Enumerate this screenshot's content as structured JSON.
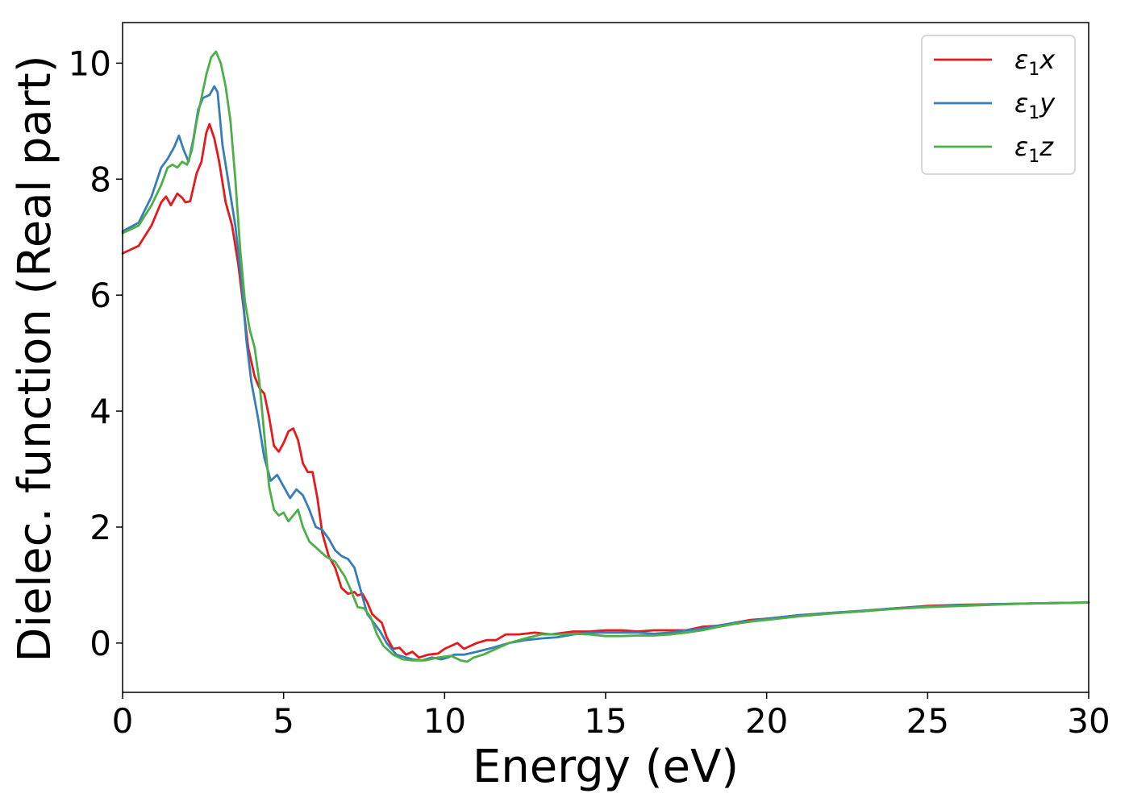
{
  "chart_data": {
    "type": "line",
    "title": "",
    "xlabel": "Energy (eV)",
    "ylabel": "Dielec. function (Real part)",
    "xlim": [
      0,
      30
    ],
    "ylim": [
      -0.85,
      10.7
    ],
    "xticks": [
      0,
      5,
      10,
      15,
      20,
      25,
      30
    ],
    "yticks": [
      0,
      2,
      4,
      6,
      8,
      10
    ],
    "grid": false,
    "legend": "top-right",
    "series": [
      {
        "name": "ε1x",
        "legend_main": "ε",
        "legend_sub": "1",
        "legend_var": "x",
        "color": "#e41a1c",
        "points": [
          [
            0,
            6.72
          ],
          [
            0.5,
            6.85
          ],
          [
            0.9,
            7.2
          ],
          [
            1.2,
            7.6
          ],
          [
            1.35,
            7.7
          ],
          [
            1.5,
            7.55
          ],
          [
            1.7,
            7.75
          ],
          [
            1.85,
            7.68
          ],
          [
            1.95,
            7.6
          ],
          [
            2.1,
            7.62
          ],
          [
            2.3,
            8.1
          ],
          [
            2.45,
            8.3
          ],
          [
            2.6,
            8.8
          ],
          [
            2.7,
            8.95
          ],
          [
            2.85,
            8.7
          ],
          [
            3.0,
            8.3
          ],
          [
            3.2,
            7.6
          ],
          [
            3.4,
            7.2
          ],
          [
            3.6,
            6.5
          ],
          [
            3.75,
            5.8
          ],
          [
            3.9,
            5.1
          ],
          [
            4.1,
            4.6
          ],
          [
            4.25,
            4.4
          ],
          [
            4.4,
            4.3
          ],
          [
            4.55,
            3.9
          ],
          [
            4.7,
            3.4
          ],
          [
            4.85,
            3.3
          ],
          [
            5.0,
            3.45
          ],
          [
            5.15,
            3.65
          ],
          [
            5.3,
            3.7
          ],
          [
            5.45,
            3.5
          ],
          [
            5.6,
            3.1
          ],
          [
            5.75,
            2.95
          ],
          [
            5.9,
            2.95
          ],
          [
            6.05,
            2.5
          ],
          [
            6.2,
            1.9
          ],
          [
            6.4,
            1.5
          ],
          [
            6.6,
            1.3
          ],
          [
            6.8,
            0.95
          ],
          [
            7.0,
            0.85
          ],
          [
            7.2,
            0.88
          ],
          [
            7.3,
            0.82
          ],
          [
            7.45,
            0.85
          ],
          [
            7.6,
            0.7
          ],
          [
            7.75,
            0.5
          ],
          [
            7.9,
            0.42
          ],
          [
            8.05,
            0.35
          ],
          [
            8.2,
            0.1
          ],
          [
            8.4,
            -0.1
          ],
          [
            8.6,
            -0.08
          ],
          [
            8.8,
            -0.2
          ],
          [
            9.0,
            -0.15
          ],
          [
            9.2,
            -0.25
          ],
          [
            9.5,
            -0.2
          ],
          [
            9.8,
            -0.18
          ],
          [
            10.0,
            -0.1
          ],
          [
            10.2,
            -0.05
          ],
          [
            10.4,
            0.0
          ],
          [
            10.6,
            -0.1
          ],
          [
            10.8,
            -0.05
          ],
          [
            11.0,
            0.0
          ],
          [
            11.3,
            0.05
          ],
          [
            11.6,
            0.05
          ],
          [
            11.9,
            0.15
          ],
          [
            12.3,
            0.15
          ],
          [
            12.8,
            0.18
          ],
          [
            13.3,
            0.15
          ],
          [
            14.0,
            0.2
          ],
          [
            14.5,
            0.2
          ],
          [
            15.0,
            0.22
          ],
          [
            15.5,
            0.22
          ],
          [
            16.0,
            0.2
          ],
          [
            16.5,
            0.22
          ],
          [
            17.0,
            0.22
          ],
          [
            17.5,
            0.22
          ],
          [
            18.0,
            0.28
          ],
          [
            18.5,
            0.3
          ],
          [
            19.0,
            0.35
          ],
          [
            19.5,
            0.4
          ],
          [
            20.0,
            0.42
          ],
          [
            21.0,
            0.48
          ],
          [
            22.0,
            0.52
          ],
          [
            23.0,
            0.55
          ],
          [
            24.0,
            0.6
          ],
          [
            25.0,
            0.64
          ],
          [
            26.0,
            0.66
          ],
          [
            27.0,
            0.67
          ],
          [
            28.0,
            0.68
          ],
          [
            29.0,
            0.69
          ],
          [
            30.0,
            0.7
          ]
        ]
      },
      {
        "name": "ε1y",
        "legend_main": "ε",
        "legend_sub": "1",
        "legend_var": "y",
        "color": "#377eb8",
        "points": [
          [
            0,
            7.1
          ],
          [
            0.5,
            7.25
          ],
          [
            0.9,
            7.7
          ],
          [
            1.2,
            8.2
          ],
          [
            1.4,
            8.35
          ],
          [
            1.6,
            8.55
          ],
          [
            1.75,
            8.75
          ],
          [
            1.9,
            8.5
          ],
          [
            2.05,
            8.3
          ],
          [
            2.2,
            8.7
          ],
          [
            2.35,
            9.2
          ],
          [
            2.5,
            9.4
          ],
          [
            2.7,
            9.45
          ],
          [
            2.85,
            9.6
          ],
          [
            2.95,
            9.5
          ],
          [
            3.1,
            8.6
          ],
          [
            3.3,
            7.9
          ],
          [
            3.5,
            7.2
          ],
          [
            3.7,
            6.2
          ],
          [
            3.85,
            5.2
          ],
          [
            4.0,
            4.5
          ],
          [
            4.2,
            3.9
          ],
          [
            4.4,
            3.2
          ],
          [
            4.6,
            2.8
          ],
          [
            4.8,
            2.9
          ],
          [
            5.0,
            2.7
          ],
          [
            5.2,
            2.5
          ],
          [
            5.4,
            2.65
          ],
          [
            5.6,
            2.55
          ],
          [
            5.8,
            2.3
          ],
          [
            6.0,
            2.0
          ],
          [
            6.2,
            1.95
          ],
          [
            6.4,
            1.8
          ],
          [
            6.6,
            1.6
          ],
          [
            6.8,
            1.5
          ],
          [
            7.0,
            1.45
          ],
          [
            7.2,
            1.3
          ],
          [
            7.4,
            0.9
          ],
          [
            7.6,
            0.5
          ],
          [
            7.8,
            0.35
          ],
          [
            8.0,
            0.2
          ],
          [
            8.2,
            0.0
          ],
          [
            8.5,
            -0.2
          ],
          [
            8.8,
            -0.25
          ],
          [
            9.0,
            -0.28
          ],
          [
            9.3,
            -0.3
          ],
          [
            9.6,
            -0.25
          ],
          [
            9.9,
            -0.28
          ],
          [
            10.1,
            -0.25
          ],
          [
            10.3,
            -0.2
          ],
          [
            10.6,
            -0.2
          ],
          [
            11.0,
            -0.15
          ],
          [
            11.5,
            -0.08
          ],
          [
            12.0,
            0.0
          ],
          [
            12.5,
            0.05
          ],
          [
            13.0,
            0.08
          ],
          [
            13.5,
            0.1
          ],
          [
            14.0,
            0.15
          ],
          [
            14.5,
            0.18
          ],
          [
            15.0,
            0.18
          ],
          [
            15.5,
            0.18
          ],
          [
            16.0,
            0.18
          ],
          [
            16.5,
            0.16
          ],
          [
            17.0,
            0.18
          ],
          [
            17.5,
            0.22
          ],
          [
            18.0,
            0.25
          ],
          [
            18.5,
            0.3
          ],
          [
            19.0,
            0.35
          ],
          [
            19.5,
            0.38
          ],
          [
            20.0,
            0.42
          ],
          [
            21.0,
            0.48
          ],
          [
            22.0,
            0.52
          ],
          [
            23.0,
            0.56
          ],
          [
            24.0,
            0.6
          ],
          [
            25.0,
            0.63
          ],
          [
            26.0,
            0.65
          ],
          [
            27.0,
            0.67
          ],
          [
            28.0,
            0.68
          ],
          [
            29.0,
            0.69
          ],
          [
            30.0,
            0.7
          ]
        ]
      },
      {
        "name": "ε1z",
        "legend_main": "ε",
        "legend_sub": "1",
        "legend_var": "z",
        "color": "#4daf4a",
        "points": [
          [
            0,
            7.07
          ],
          [
            0.5,
            7.2
          ],
          [
            0.9,
            7.55
          ],
          [
            1.2,
            7.9
          ],
          [
            1.4,
            8.2
          ],
          [
            1.55,
            8.25
          ],
          [
            1.7,
            8.2
          ],
          [
            1.85,
            8.3
          ],
          [
            2.0,
            8.25
          ],
          [
            2.15,
            8.5
          ],
          [
            2.3,
            9.0
          ],
          [
            2.45,
            9.4
          ],
          [
            2.6,
            9.8
          ],
          [
            2.75,
            10.1
          ],
          [
            2.9,
            10.2
          ],
          [
            3.05,
            10.0
          ],
          [
            3.2,
            9.6
          ],
          [
            3.35,
            9.0
          ],
          [
            3.5,
            8.0
          ],
          [
            3.65,
            6.8
          ],
          [
            3.8,
            5.9
          ],
          [
            3.95,
            5.4
          ],
          [
            4.1,
            5.1
          ],
          [
            4.25,
            4.5
          ],
          [
            4.4,
            3.6
          ],
          [
            4.55,
            2.7
          ],
          [
            4.7,
            2.3
          ],
          [
            4.85,
            2.2
          ],
          [
            5.0,
            2.25
          ],
          [
            5.15,
            2.1
          ],
          [
            5.3,
            2.2
          ],
          [
            5.45,
            2.3
          ],
          [
            5.6,
            2.0
          ],
          [
            5.8,
            1.75
          ],
          [
            6.0,
            1.65
          ],
          [
            6.3,
            1.5
          ],
          [
            6.6,
            1.4
          ],
          [
            6.9,
            1.15
          ],
          [
            7.1,
            0.9
          ],
          [
            7.3,
            0.62
          ],
          [
            7.5,
            0.6
          ],
          [
            7.7,
            0.45
          ],
          [
            7.9,
            0.15
          ],
          [
            8.1,
            -0.05
          ],
          [
            8.4,
            -0.2
          ],
          [
            8.7,
            -0.28
          ],
          [
            9.0,
            -0.3
          ],
          [
            9.4,
            -0.3
          ],
          [
            9.8,
            -0.25
          ],
          [
            10.2,
            -0.22
          ],
          [
            10.5,
            -0.3
          ],
          [
            10.7,
            -0.32
          ],
          [
            10.9,
            -0.25
          ],
          [
            11.2,
            -0.2
          ],
          [
            11.6,
            -0.1
          ],
          [
            12.0,
            0.0
          ],
          [
            12.5,
            0.08
          ],
          [
            13.0,
            0.15
          ],
          [
            13.5,
            0.15
          ],
          [
            14.0,
            0.16
          ],
          [
            14.5,
            0.15
          ],
          [
            15.0,
            0.12
          ],
          [
            15.5,
            0.12
          ],
          [
            16.0,
            0.13
          ],
          [
            16.5,
            0.13
          ],
          [
            17.0,
            0.15
          ],
          [
            17.5,
            0.18
          ],
          [
            18.0,
            0.22
          ],
          [
            18.5,
            0.28
          ],
          [
            19.0,
            0.33
          ],
          [
            19.5,
            0.37
          ],
          [
            20.0,
            0.4
          ],
          [
            21.0,
            0.46
          ],
          [
            22.0,
            0.51
          ],
          [
            23.0,
            0.55
          ],
          [
            24.0,
            0.59
          ],
          [
            25.0,
            0.62
          ],
          [
            26.0,
            0.64
          ],
          [
            27.0,
            0.66
          ],
          [
            28.0,
            0.68
          ],
          [
            29.0,
            0.69
          ],
          [
            30.0,
            0.7
          ]
        ]
      }
    ]
  }
}
